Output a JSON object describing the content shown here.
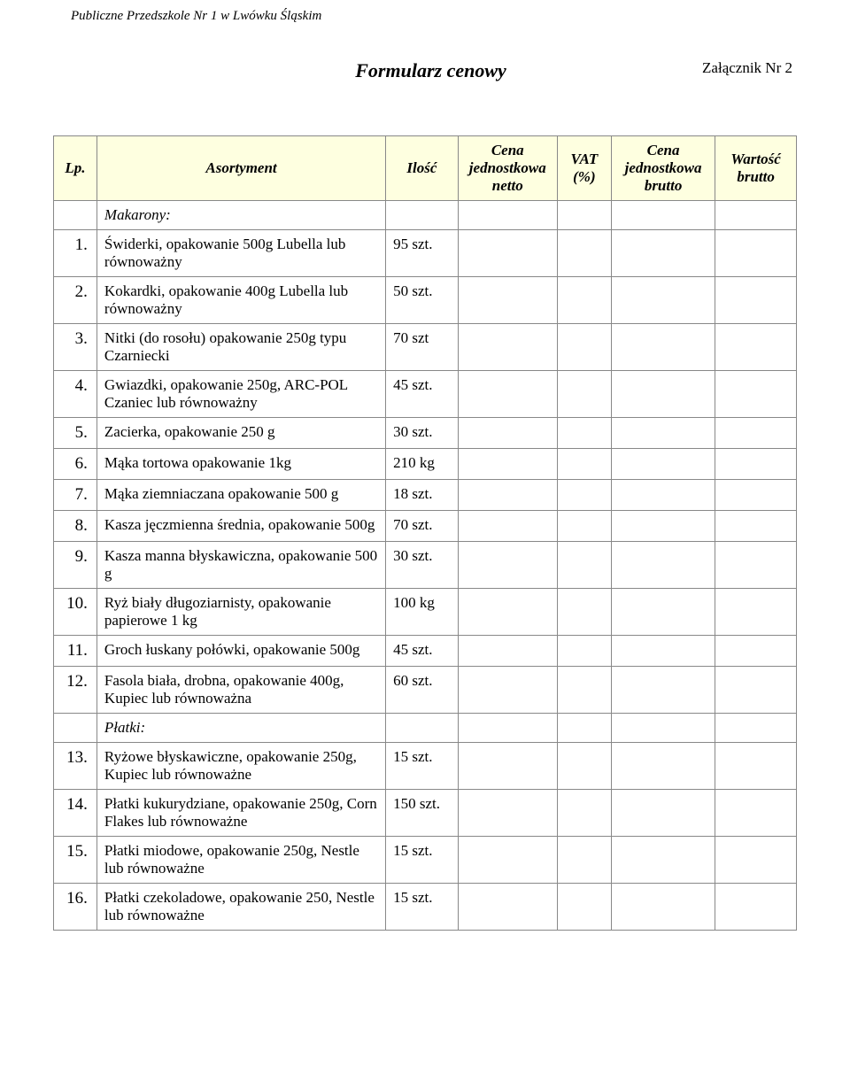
{
  "header": {
    "institution": "Publiczne Przedszkole Nr 1 w Lwówku Śląskim",
    "title": "Formularz cenowy",
    "attachment": "Załącznik Nr 2"
  },
  "table": {
    "columns": {
      "lp": "Lp.",
      "asortyment": "Asortyment",
      "ilosc": "Ilość",
      "cena_netto": "Cena jednostkowa netto",
      "vat": "VAT (%)",
      "cena_brutto": "Cena jednostkowa brutto",
      "wartosc": "Wartość brutto"
    },
    "rows": [
      {
        "lp": "",
        "asort": "Makarony:",
        "ilosc": "",
        "section": true
      },
      {
        "lp": "1.",
        "asort": "Świderki, opakowanie 500g Lubella lub równoważny",
        "ilosc": "95 szt."
      },
      {
        "lp": "2.",
        "asort": "Kokardki, opakowanie 400g Lubella lub równoważny",
        "ilosc": "50 szt."
      },
      {
        "lp": "3.",
        "asort": "Nitki (do rosołu) opakowanie 250g typu Czarniecki",
        "ilosc": "70 szt"
      },
      {
        "lp": "4.",
        "asort": "Gwiazdki, opakowanie 250g, ARC-POL Czaniec lub równoważny",
        "ilosc": "45 szt."
      },
      {
        "lp": "5.",
        "asort": "Zacierka, opakowanie 250 g",
        "ilosc": "30 szt."
      },
      {
        "lp": "6.",
        "asort": "Mąka tortowa opakowanie 1kg",
        "ilosc": "210 kg"
      },
      {
        "lp": "7.",
        "asort": "Mąka ziemniaczana opakowanie 500 g",
        "ilosc": "18 szt."
      },
      {
        "lp": "8.",
        "asort": "Kasza jęczmienna średnia, opakowanie 500g",
        "ilosc": "70 szt."
      },
      {
        "lp": "9.",
        "asort": "Kasza manna błyskawiczna, opakowanie 500 g",
        "ilosc": "30 szt."
      },
      {
        "lp": "10.",
        "asort": "Ryż biały długoziarnisty, opakowanie papierowe 1 kg",
        "ilosc": "100 kg"
      },
      {
        "lp": "11.",
        "asort": "Groch łuskany połówki, opakowanie 500g",
        "ilosc": "45 szt."
      },
      {
        "lp": "12.",
        "asort": "Fasola biała, drobna, opakowanie 400g, Kupiec lub równoważna",
        "ilosc": "60 szt."
      },
      {
        "lp": "",
        "asort": "Płatki:",
        "ilosc": "",
        "section": true
      },
      {
        "lp": "13.",
        "asort": "Ryżowe błyskawiczne, opakowanie 250g, Kupiec lub równoważne",
        "ilosc": "15 szt."
      },
      {
        "lp": "14.",
        "asort": "Płatki kukurydziane, opakowanie 250g, Corn Flakes lub równoważne",
        "ilosc": "150 szt."
      },
      {
        "lp": "15.",
        "asort": "Płatki miodowe, opakowanie 250g, Nestle lub równoważne",
        "ilosc": "15 szt."
      },
      {
        "lp": "16.",
        "asort": "Płatki czekoladowe, opakowanie 250, Nestle lub równoważne",
        "ilosc": "15 szt."
      }
    ]
  }
}
